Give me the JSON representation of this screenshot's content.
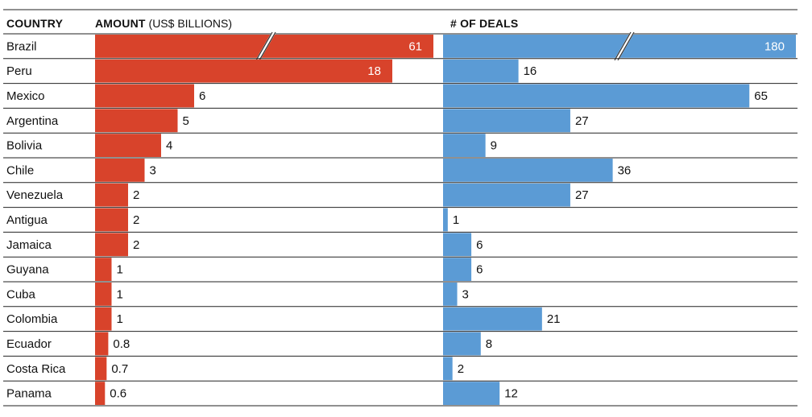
{
  "headers": {
    "country": "COUNTRY",
    "amount_bold": "AMOUNT",
    "amount_unit": " (US$ BILLIONS)",
    "deals": "# OF DEALS"
  },
  "colors": {
    "amount": "#d8432b",
    "deals": "#5b9bd5",
    "rules": "#222222"
  },
  "chart_data": [
    {
      "type": "bar",
      "orientation": "horizontal",
      "title": "AMOUNT (US$ BILLIONS)",
      "categories": [
        "Brazil",
        "Peru",
        "Mexico",
        "Argentina",
        "Bolivia",
        "Chile",
        "Venezuela",
        "Antigua",
        "Jamaica",
        "Guyana",
        "Cuba",
        "Colombia",
        "Ecuador",
        "Costa Rica",
        "Panama"
      ],
      "values": [
        61,
        18,
        6,
        5,
        4,
        3,
        2,
        2,
        2,
        1,
        1,
        1,
        0.8,
        0.7,
        0.6
      ],
      "value_labels": [
        "61",
        "18",
        "6",
        "5",
        "4",
        "3",
        "2",
        "2",
        "2",
        "1",
        "1",
        "1",
        "0.8",
        "0.7",
        "0.6"
      ],
      "broken_axis": true,
      "grid": false,
      "legend": "none"
    },
    {
      "type": "bar",
      "orientation": "horizontal",
      "title": "# OF DEALS",
      "categories": [
        "Brazil",
        "Peru",
        "Mexico",
        "Argentina",
        "Bolivia",
        "Chile",
        "Venezuela",
        "Antigua",
        "Jamaica",
        "Guyana",
        "Cuba",
        "Colombia",
        "Ecuador",
        "Costa Rica",
        "Panama"
      ],
      "values": [
        180,
        16,
        65,
        27,
        9,
        36,
        27,
        1,
        6,
        6,
        3,
        21,
        8,
        2,
        12
      ],
      "value_labels": [
        "180",
        "16",
        "65",
        "27",
        "9",
        "36",
        "27",
        "1",
        "6",
        "6",
        "3",
        "21",
        "8",
        "2",
        "12"
      ],
      "broken_axis": true,
      "grid": false,
      "legend": "none"
    }
  ]
}
